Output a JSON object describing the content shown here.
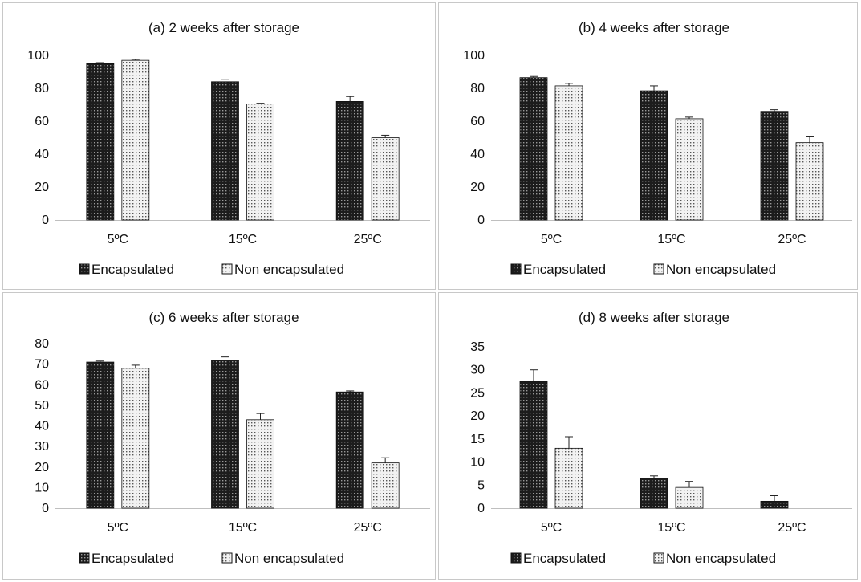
{
  "chart_data": [
    {
      "type": "bar",
      "title": "(a) 2 weeks after storage",
      "categories": [
        "5ºC",
        "15ºC",
        "25ºC"
      ],
      "series": [
        {
          "name": "Encapsulated",
          "values": [
            95,
            84,
            72
          ],
          "errors": [
            0.6,
            1.5,
            3
          ]
        },
        {
          "name": "Non encapsulated",
          "values": [
            97,
            70.5,
            50
          ],
          "errors": [
            0.6,
            0.4,
            1.5
          ]
        }
      ],
      "ylim": [
        0,
        100
      ],
      "yticks": [
        "0",
        "20",
        "40",
        "60",
        "80",
        "100"
      ],
      "grid": false,
      "legend": "bottom"
    },
    {
      "type": "bar",
      "title": "(b) 4 weeks after storage",
      "categories": [
        "5ºC",
        "15ºC",
        "25ºC"
      ],
      "series": [
        {
          "name": "Encapsulated",
          "values": [
            86.5,
            78.5,
            66
          ],
          "errors": [
            0.7,
            3,
            1
          ]
        },
        {
          "name": "Non encapsulated",
          "values": [
            81.5,
            61.5,
            47
          ],
          "errors": [
            1.5,
            1,
            3.5
          ]
        }
      ],
      "ylim": [
        0,
        100
      ],
      "yticks": [
        "0",
        "20",
        "40",
        "60",
        "80",
        "100"
      ],
      "grid": false,
      "legend": "bottom"
    },
    {
      "type": "bar",
      "title": "(c) 6 weeks after storage",
      "categories": [
        "5ºC",
        "15ºC",
        "25ºC"
      ],
      "series": [
        {
          "name": "Encapsulated",
          "values": [
            71,
            72,
            56.5
          ],
          "errors": [
            0.5,
            1.5,
            0.5
          ]
        },
        {
          "name": "Non encapsulated",
          "values": [
            68,
            43,
            22
          ],
          "errors": [
            1.5,
            3,
            2.5
          ]
        }
      ],
      "ylim": [
        0,
        80
      ],
      "yticks": [
        "0",
        "10",
        "20",
        "30",
        "40",
        "50",
        "60",
        "70",
        "80"
      ],
      "grid": false,
      "legend": "bottom"
    },
    {
      "type": "bar",
      "title": "(d) 8 weeks after storage",
      "categories": [
        "5ºC",
        "15ºC",
        "25ºC"
      ],
      "series": [
        {
          "name": "Encapsulated",
          "values": [
            27.5,
            6.5,
            1.5
          ],
          "errors": [
            2.5,
            0.5,
            1.2
          ]
        },
        {
          "name": "Non encapsulated",
          "values": [
            13,
            4.5,
            0
          ],
          "errors": [
            2.5,
            1.3,
            0
          ]
        }
      ],
      "ylim": [
        0,
        35
      ],
      "yticks": [
        "0",
        "5",
        "10",
        "15",
        "20",
        "25",
        "30",
        "35"
      ],
      "grid": false,
      "legend": "bottom"
    }
  ],
  "colors": {
    "encapsulated_fill": "#1c1c1c",
    "encapsulated_dot": "#9a9a9a",
    "non_encapsulated_fill": "#f2f2f2",
    "non_encapsulated_dot": "#555555",
    "bar_stroke": "#111111",
    "axis": "#bfbfbf"
  }
}
